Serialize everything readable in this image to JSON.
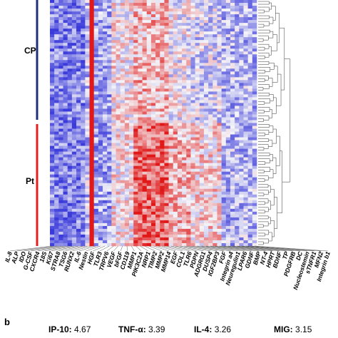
{
  "chart_data": {
    "type": "heatmap",
    "panel_label": "b",
    "row_groups": [
      {
        "label": "CP",
        "color": "#1f2f7a"
      },
      {
        "label": "Pt",
        "color": "#e02020"
      }
    ],
    "genes": [
      "IL-8",
      "ALP",
      "IDO",
      "G-CSF",
      "CXCR4",
      "18S",
      "Ki67",
      "STRA8",
      "TSG6",
      "RUNX2",
      "IL-6",
      "Nestin",
      "HGF",
      "TLR3",
      "TRPV6",
      "VEGF",
      "bFGF",
      "CD119",
      "MMP1",
      "PIK3C2A",
      "NRP1",
      "TIMP2",
      "MMP2",
      "MMP14",
      "EGF",
      "COL1",
      "TLR6",
      "PDPN",
      "ADGRG1",
      "DUSP4",
      "IGF2BP3",
      "FGF",
      "Integrin a4",
      "Neuregulin1",
      "LPAR6",
      "GDNF",
      "BMP",
      "NT-4",
      "HPRT",
      "BDNF",
      "TP",
      "PDGFRB",
      "DC",
      "Nucleostemin",
      "sTNFR1",
      "MFN2",
      "Integrin b1"
    ],
    "stats": [
      {
        "name": "IP-10:",
        "value": "4.67"
      },
      {
        "name": "TNF-α:",
        "value": "3.39"
      },
      {
        "name": "IL-4:",
        "value": "3.26"
      },
      {
        "name": "MIG:",
        "value": "3.15"
      }
    ],
    "colors": {
      "low": "#3b3bdb",
      "mid": "#f4f4f8",
      "high": "#e01818",
      "cp_bar": "#1f2f7a",
      "pt_bar": "#e02020"
    }
  }
}
